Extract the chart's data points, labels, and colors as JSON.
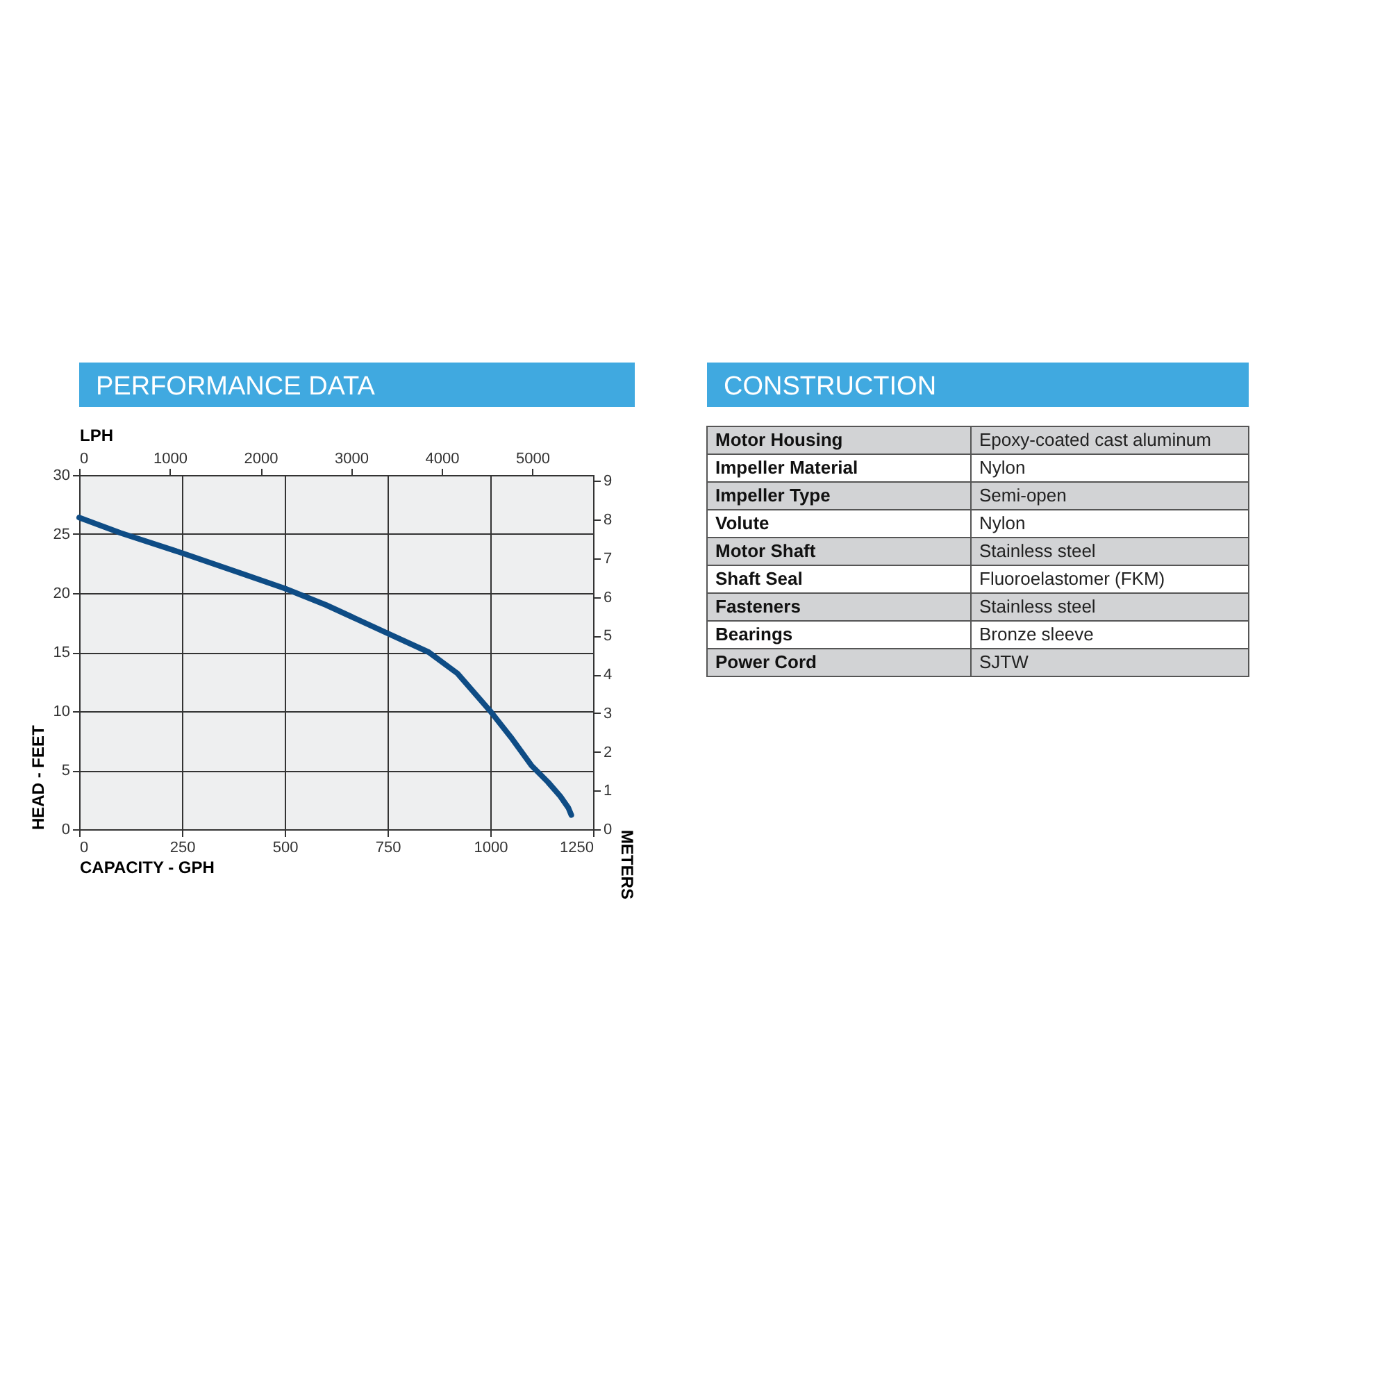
{
  "chart_data": [
    {
      "type": "line",
      "title": "PERFORMANCE DATA",
      "xlabel": "CAPACITY - GPH",
      "ylabel": "HEAD - FEET",
      "x2label": "LPH",
      "y2label": "METERS",
      "x": [
        0,
        100,
        250,
        400,
        500,
        600,
        750,
        850,
        920,
        1000,
        1050,
        1100,
        1140,
        1170,
        1190,
        1197
      ],
      "series": [
        {
          "color": "#0e4c85",
          "values": [
            26.4,
            25.1,
            23.4,
            21.6,
            20.4,
            19.0,
            16.6,
            15.0,
            13.2,
            10.0,
            7.8,
            5.4,
            4.0,
            2.8,
            1.8,
            1.2
          ]
        }
      ],
      "xlim": [
        0,
        1250
      ],
      "xticks": [
        0,
        250,
        500,
        750,
        1000,
        1250
      ],
      "ylim": [
        0,
        30
      ],
      "yticks": [
        0,
        5,
        10,
        15,
        20,
        25,
        30
      ],
      "x2lim": [
        0,
        5670
      ],
      "x2ticks": [
        0,
        1000,
        2000,
        3000,
        4000,
        5000
      ],
      "y2lim": [
        0,
        9.15
      ],
      "y2ticks": [
        0,
        1,
        2,
        3,
        4,
        5,
        6,
        7,
        8,
        9
      ],
      "grid": true,
      "legend": false,
      "marker": "none",
      "line_style": "solid"
    },
    {
      "type": "other",
      "title": "CONSTRUCTION",
      "annotations": [
        "Motor Housing",
        "Epoxy-coated cast aluminum",
        "Impeller Material",
        "Nylon",
        "Impeller Type",
        "Semi-open",
        "Volute",
        "Nylon",
        "Motor Shaft",
        "Stainless steel",
        "Shaft Seal",
        "Fluoroelastomer (FKM)",
        "Fasteners",
        "Stainless steel",
        "Bearings",
        "Bronze sleeve",
        "Power Cord",
        "SJTW"
      ]
    }
  ]
}
